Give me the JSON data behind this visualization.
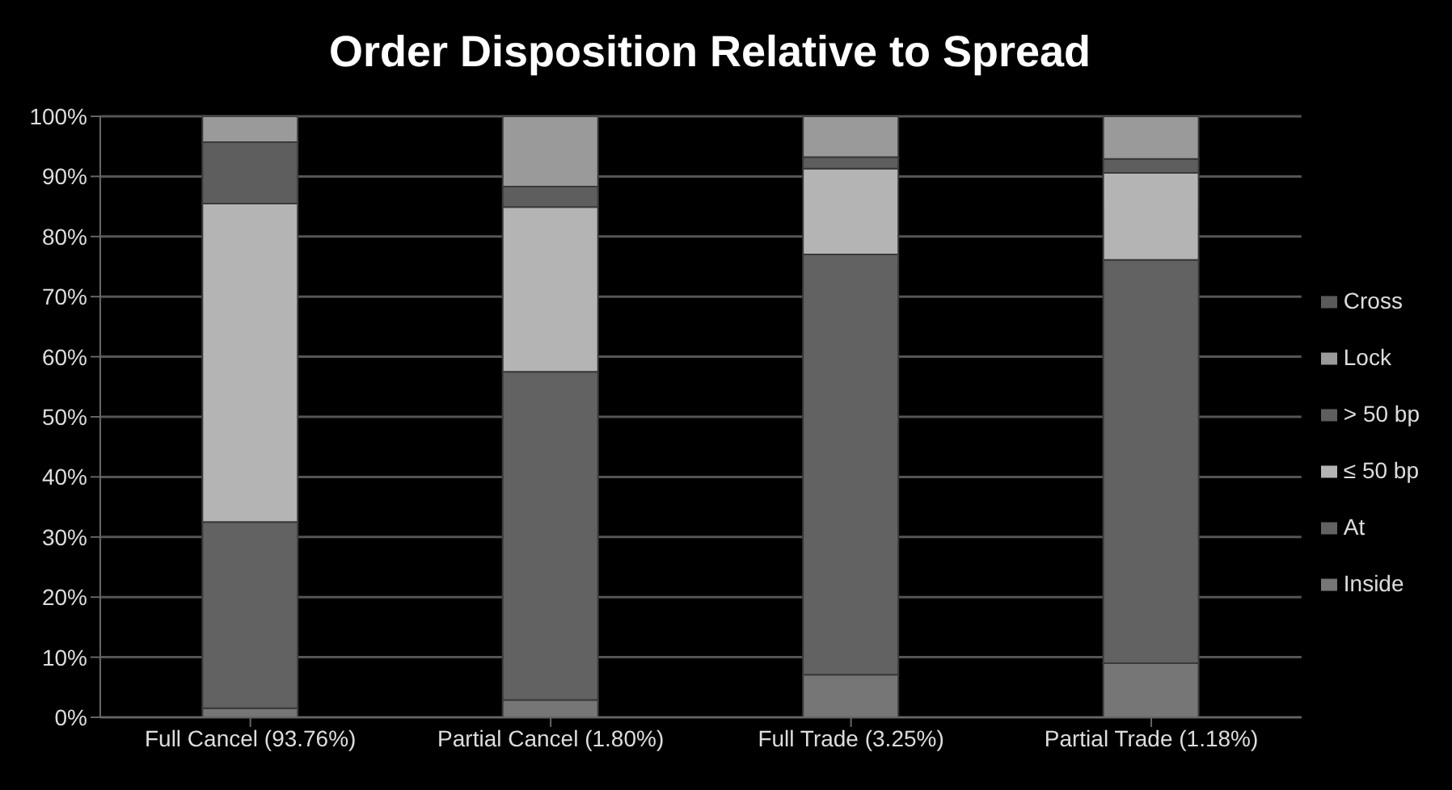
{
  "chart_data": {
    "type": "bar",
    "title": "Order Disposition Relative to Spread",
    "stacked": true,
    "categories": [
      "Full Cancel (93.76%)",
      "Partial Cancel (1.80%)",
      "Full Trade (3.25%)",
      "Partial Trade (1.18%)"
    ],
    "series": [
      {
        "name": "Inside",
        "color": "#767676",
        "values": [
          1.5,
          2.9,
          7.1,
          9.0
        ]
      },
      {
        "name": "At",
        "color": "#626262",
        "values": [
          31.0,
          54.6,
          69.9,
          67.1
        ]
      },
      {
        "name": "≤ 50 bp",
        "color": "#b4b4b4",
        "values": [
          53.0,
          27.4,
          14.3,
          14.5
        ]
      },
      {
        "name": "> 50 bp",
        "color": "#5e5e5e",
        "values": [
          10.2,
          3.4,
          1.9,
          2.3
        ]
      },
      {
        "name": "Lock",
        "color": "#9a9a9a",
        "values": [
          4.3,
          11.7,
          6.8,
          7.1
        ]
      },
      {
        "name": "Cross",
        "color": "#5a5a5a",
        "values": [
          0,
          0,
          0,
          0
        ]
      }
    ],
    "ylim": [
      0,
      100
    ],
    "yticks": [
      {
        "value": 0,
        "label": "0%"
      },
      {
        "value": 10,
        "label": "10%"
      },
      {
        "value": 20,
        "label": "20%"
      },
      {
        "value": 30,
        "label": "30%"
      },
      {
        "value": 40,
        "label": "40%"
      },
      {
        "value": 50,
        "label": "50%"
      },
      {
        "value": 60,
        "label": "60%"
      },
      {
        "value": 70,
        "label": "70%"
      },
      {
        "value": 80,
        "label": "80%"
      },
      {
        "value": 90,
        "label": "90%"
      },
      {
        "value": 100,
        "label": "100%"
      }
    ],
    "grid": "y",
    "legend": "right"
  }
}
